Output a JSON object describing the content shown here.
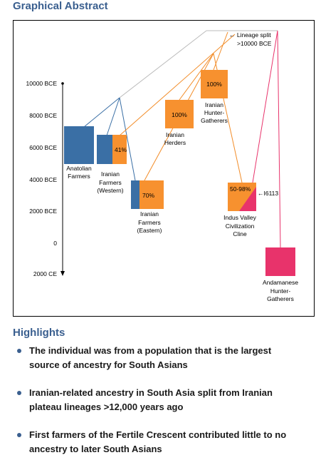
{
  "header": {
    "title": "Graphical Abstract"
  },
  "diagram": {
    "time_axis": [
      "10000 BCE",
      "8000 BCE",
      "6000 BCE",
      "4000 BCE",
      "2000 BCE",
      "0",
      "2000 CE"
    ],
    "lineage_split": [
      "← Lineage split",
      ">10000 BCE"
    ],
    "groups": [
      {
        "label": [
          "Anatolian",
          "Farmers"
        ]
      },
      {
        "label": [
          "Iranian",
          "Farmers",
          "(Western)"
        ],
        "percent": "41%"
      },
      {
        "label": [
          "Iranian",
          "Farmers",
          "(Eastern)"
        ],
        "percent": "70%"
      },
      {
        "label": [
          "Iranian",
          "Herders"
        ],
        "percent": "100%"
      },
      {
        "label": [
          "Iranian",
          "Hunter-",
          "Gatherers"
        ],
        "percent": "100%"
      },
      {
        "label": [
          "Indus Valley",
          "Civilization",
          "Cline"
        ],
        "percent": "50-98%",
        "sample": "←I6113"
      },
      {
        "label": [
          "Andamanese",
          "Hunter-",
          "Gatherers"
        ]
      }
    ]
  },
  "highlights": {
    "title": "Highlights",
    "items": [
      "The individual was from a population that is the largest source of ancestry for South Asians",
      "Iranian-related ancestry in South Asia split from Iranian plateau lineages >12,000 years ago",
      "First farmers of the Fertile Crescent contributed little to no ancestry to later South Asians"
    ]
  }
}
